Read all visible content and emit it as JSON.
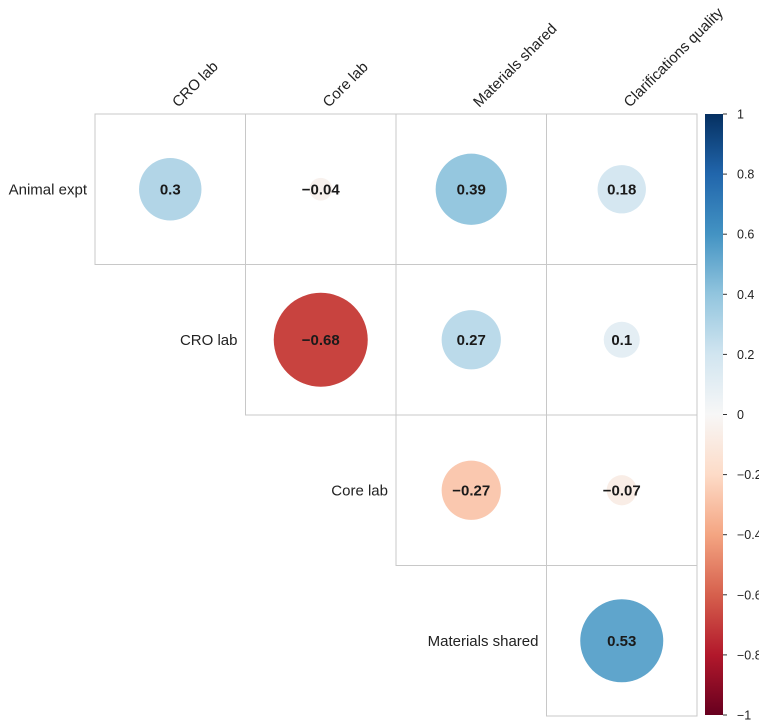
{
  "chart_data": {
    "type": "heatmap",
    "style": "correlation-circles-upper-triangle",
    "columns": [
      "CRO lab",
      "Core lab",
      "Materials shared",
      "Clarifications quality"
    ],
    "rows": [
      "Animal expt",
      "CRO lab",
      "Core lab",
      "Materials shared"
    ],
    "cells": [
      {
        "row": 0,
        "col": 0,
        "value": 0.3,
        "label": "0.3"
      },
      {
        "row": 0,
        "col": 1,
        "value": -0.04,
        "label": "−0.04"
      },
      {
        "row": 0,
        "col": 2,
        "value": 0.39,
        "label": "0.39"
      },
      {
        "row": 0,
        "col": 3,
        "value": 0.18,
        "label": "0.18"
      },
      {
        "row": 1,
        "col": 1,
        "value": -0.68,
        "label": "−0.68"
      },
      {
        "row": 1,
        "col": 2,
        "value": 0.27,
        "label": "0.27"
      },
      {
        "row": 1,
        "col": 3,
        "value": 0.1,
        "label": "0.1"
      },
      {
        "row": 2,
        "col": 2,
        "value": -0.27,
        "label": "−0.27"
      },
      {
        "row": 2,
        "col": 3,
        "value": -0.07,
        "label": "−0.07"
      },
      {
        "row": 3,
        "col": 3,
        "value": 0.53,
        "label": "0.53"
      }
    ],
    "colorbar": {
      "min": -1,
      "max": 1,
      "ticks": [
        1,
        0.8,
        0.6,
        0.4,
        0.2,
        0,
        -0.2,
        -0.4,
        -0.6,
        -0.8,
        -1
      ],
      "tick_labels": [
        "1",
        "0.8",
        "0.6",
        "0.4",
        "0.2",
        "0",
        "−0.2",
        "−0.4",
        "−0.6",
        "−0.8",
        "−1"
      ],
      "colormap": "RdBu",
      "colormap_stops": [
        "#67001f",
        "#b2182b",
        "#d6604d",
        "#f4a582",
        "#fddbc7",
        "#f7f7f7",
        "#d1e5f0",
        "#92c5de",
        "#4393c3",
        "#2166ac",
        "#053061"
      ]
    }
  }
}
